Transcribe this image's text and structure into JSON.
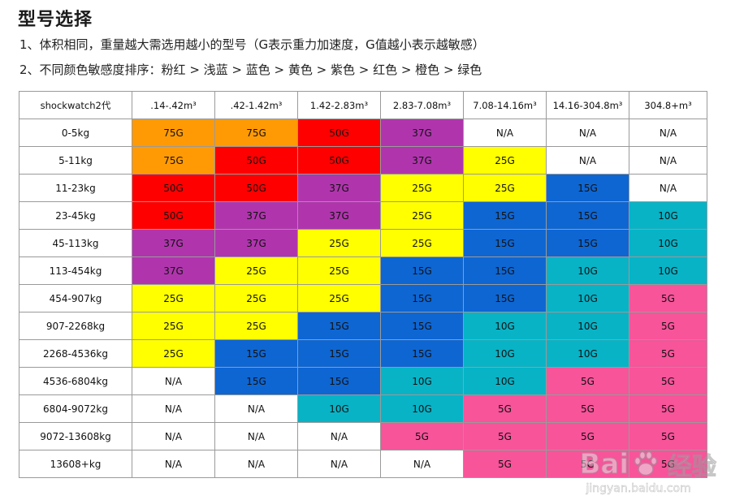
{
  "title": "型号选择",
  "notes": [
    "1、体积相同，重量越大需选用越小的型号（G表示重力加速度，G值越小表示越敏感）",
    "2、不同颜色敏感度排序：粉红 > 浅蓝 > 蓝色 > 黄色 > 紫色 > 红色 > 橙色 > 绿色"
  ],
  "table": {
    "header": [
      "shockwatch2代",
      ".14-.42m³",
      ".42-1.42m³",
      "1.42-2.83m³",
      "2.83-7.08m³",
      "7.08-14.16m³",
      "14.16-304.8m³",
      "304.8+m³"
    ],
    "rows": [
      {
        "label": "0-5kg",
        "cells": [
          "75G",
          "75G",
          "50G",
          "37G",
          "N/A",
          "N/A",
          "N/A"
        ]
      },
      {
        "label": "5-11kg",
        "cells": [
          "75G",
          "50G",
          "50G",
          "37G",
          "25G",
          "N/A",
          "N/A"
        ]
      },
      {
        "label": "11-23kg",
        "cells": [
          "50G",
          "50G",
          "37G",
          "25G",
          "25G",
          "15G",
          "N/A"
        ]
      },
      {
        "label": "23-45kg",
        "cells": [
          "50G",
          "37G",
          "37G",
          "25G",
          "15G",
          "15G",
          "10G"
        ]
      },
      {
        "label": "45-113kg",
        "cells": [
          "37G",
          "37G",
          "25G",
          "25G",
          "15G",
          "15G",
          "10G"
        ]
      },
      {
        "label": "113-454kg",
        "cells": [
          "37G",
          "25G",
          "25G",
          "15G",
          "15G",
          "10G",
          "10G"
        ]
      },
      {
        "label": "454-907kg",
        "cells": [
          "25G",
          "25G",
          "25G",
          "15G",
          "15G",
          "10G",
          "5G"
        ]
      },
      {
        "label": "907-2268kg",
        "cells": [
          "25G",
          "25G",
          "15G",
          "15G",
          "10G",
          "10G",
          "5G"
        ]
      },
      {
        "label": "2268-4536kg",
        "cells": [
          "25G",
          "15G",
          "15G",
          "15G",
          "10G",
          "10G",
          "5G"
        ]
      },
      {
        "label": "4536-6804kg",
        "cells": [
          "N/A",
          "15G",
          "15G",
          "10G",
          "10G",
          "5G",
          "5G"
        ]
      },
      {
        "label": "6804-9072kg",
        "cells": [
          "N/A",
          "N/A",
          "10G",
          "10G",
          "5G",
          "5G",
          "5G"
        ]
      },
      {
        "label": "9072-13608kg",
        "cells": [
          "N/A",
          "N/A",
          "N/A",
          "5G",
          "5G",
          "5G",
          "5G"
        ]
      },
      {
        "label": "13608+kg",
        "cells": [
          "N/A",
          "N/A",
          "N/A",
          "N/A",
          "5G",
          "5G",
          "5G"
        ]
      }
    ]
  },
  "color_map": {
    "75G": "#ff9a05",
    "50G": "#ff0000",
    "37G": "#b035ad",
    "25G": "#ffff00",
    "15G": "#0e66d2",
    "10G": "#08b3c6",
    "5G": "#f7549a",
    "N/A": "#ffffff"
  },
  "watermark": {
    "brand": "Bai",
    "brand2": "经验",
    "url": "jingyan.baidu.com"
  }
}
